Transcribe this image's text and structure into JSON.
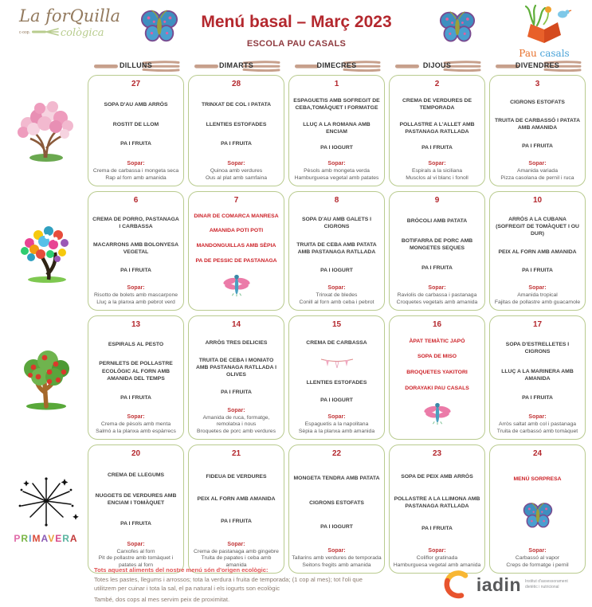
{
  "header": {
    "title": "Menú basal – Març 2023",
    "subtitle": "ESCOLA PAU CASALS",
    "brand_left": {
      "name": "La forQuilla",
      "eco": "cològica",
      "coop": "c-oop."
    },
    "brand_right": {
      "name_part1": "Pau ",
      "name_part2": "casals"
    }
  },
  "colors": {
    "accent_red": "#b4282e",
    "special_red": "#cc2127",
    "border_green": "#b9cb8f"
  },
  "days": [
    "DILLUNS",
    "DIMARTS",
    "DIMECRES",
    "DIJOUS",
    "DIVENDRES"
  ],
  "weeks": [
    {
      "side_image": "cherry-blossom-tree",
      "cells": [
        {
          "date": "27",
          "items": [
            "SOPA D'AU AMB ARRÒS",
            "ROSTIT DE LLOM",
            "PA I FRUITA"
          ],
          "sopar_label": "Sopar:",
          "sopar": [
            "Crema de carbassa i mongeta seca",
            "Rap al forn amb amanida"
          ]
        },
        {
          "date": "28",
          "items": [
            "TRINXAT DE COL I PATATA",
            "LLENTIES ESTOFADES",
            "PA I FRUITA"
          ],
          "sopar_label": "Sopar:",
          "sopar": [
            "Quinoa amb verdures",
            "Ous al plat amb samfaina"
          ]
        },
        {
          "date": "1",
          "items": [
            "ESPAGUETIS AMB SOFREGIT DE CEBA,TOMÀQUET I FORMATGE",
            "LLUÇ A LA ROMANA AMB ENCIAM",
            "PA I IOGURT"
          ],
          "sopar_label": "Sopar:",
          "sopar": [
            "Pèsols amb mongeta verda",
            "Hamburguesa vegetal amb patates"
          ]
        },
        {
          "date": "2",
          "items": [
            "CREMA DE VERDURES DE TEMPORADA",
            "POLLASTRE A L'ALLET AMB PASTANAGA RATLLADA",
            "PA I FRUITA"
          ],
          "sopar_label": "Sopar:",
          "sopar": [
            "Espirals a la siciliana",
            "Musclos al vi blanc i fonoll"
          ]
        },
        {
          "date": "3",
          "items": [
            "CIGRONS ESTOFATS",
            "TRUITA DE CARBASSÓ I PATATA AMB AMANIDA",
            "PA I FRUITA"
          ],
          "sopar_label": "Sopar:",
          "sopar": [
            "Amanida variada",
            "Pizza casolana de pernil i ruca"
          ]
        }
      ]
    },
    {
      "side_image": "flower-tree",
      "cells": [
        {
          "date": "6",
          "items": [
            "CREMA DE PORRO, PASTANAGA I CARBASSA",
            "MACARRONS AMB BOLONYESA VEGETAL",
            "PA I FRUITA"
          ],
          "sopar_label": "Sopar:",
          "sopar": [
            "Risotto de bolets amb mascarpone",
            "Lluç a la planxa amb pebrot verd"
          ]
        },
        {
          "date": "7",
          "highlight": true,
          "icon": "dragonfly",
          "items": [
            "DINAR DE COMARCA MANRESA",
            "AMANIDA POTI POTI",
            "MANDONGUILLAS AMB SÈPIA",
            "PA DE PESSIC DE PASTANAGA"
          ]
        },
        {
          "date": "8",
          "items": [
            "SOPA D'AU AMB GALETS I CIGRONS",
            "TRUITA DE CEBA AMB PATATA AMB PASTANAGA RATLLADA",
            "PA I IOGURT"
          ],
          "sopar_label": "Sopar:",
          "sopar": [
            "Trinxat de bledes",
            "Conill al forn amb ceba i pebrot"
          ]
        },
        {
          "date": "9",
          "items": [
            "BRÒCOLI AMB PATATA",
            "BOTIFARRA DE PORC AMB MONGETES SEQUES",
            "PA I FRUITA"
          ],
          "sopar_label": "Sopar:",
          "sopar": [
            "Raviolis de carbassa i pastanaga",
            "Croquetes vegetals amb amanida"
          ]
        },
        {
          "date": "10",
          "items": [
            "ARRÒS A LA CUBANA (SOFREGIT DE TOMÀQUET I OU DUR)",
            "PEIX AL FORN AMB AMANIDA",
            "PA I FRUITA"
          ],
          "sopar_label": "Sopar:",
          "sopar": [
            "Amanida tropical",
            "Fajitas de pollastre amb guacamole"
          ]
        }
      ]
    },
    {
      "side_image": "apple-tree",
      "cells": [
        {
          "date": "13",
          "items": [
            "ESPIRALS AL PESTO",
            "PERNILETS DE POLLASTRE ECOLÒGIC AL FORN AMB AMANIDA DEL TEMPS",
            "PA I FRUITA"
          ],
          "sopar_label": "Sopar:",
          "sopar": [
            "Crema de pèsols amb menta",
            "Salmó a la planxa amb espàrrecs"
          ]
        },
        {
          "date": "14",
          "items": [
            "ARRÒS TRES DELICIES",
            "TRUITA DE CEBA I MONIATO AMB PASTANAGA RATLLADA I OLIVES",
            "PA I FRUITA"
          ],
          "sopar_label": "Sopar:",
          "sopar": [
            "Amanida de ruca, formatge, remolatxa i nous",
            "Broquetes de porc amb verdures"
          ]
        },
        {
          "date": "15",
          "icon": "bunting",
          "items": [
            "CREMA DE CARBASSA",
            "LLENTIES ESTOFADES",
            "PA I IOGURT"
          ],
          "sopar_label": "Sopar:",
          "sopar": [
            "Espaguetis a la napolitana",
            "Sèpia a la planxa amb amanida"
          ]
        },
        {
          "date": "16",
          "highlight": true,
          "icon": "dragonfly",
          "items": [
            "ÀPAT TEMÀTIC JAPÓ",
            "SOPA DE MISO",
            "BROQUETES YAKITORI",
            "DORAYAKI PAU CASALS"
          ]
        },
        {
          "date": "17",
          "items": [
            "SOPA D'ESTRELLETES I CIGRONS",
            "LLUÇ A LA MARINERA AMB AMANIDA",
            "PA I FRUITA"
          ],
          "sopar_label": "Sopar:",
          "sopar": [
            "Arròs saltat amb col i pastanaga",
            "Truita de carbassó amb tomàquet"
          ]
        }
      ]
    },
    {
      "side_image": "fireworks-primavera",
      "side_word": "PRIMAVERA",
      "cells": [
        {
          "date": "20",
          "items": [
            "CREMA DE LLEGUMS",
            "NUGGETS DE VERDURES AMB ENCIAM I TOMÀQUET",
            "PA I FRUITA"
          ],
          "sopar_label": "Sopar:",
          "sopar": [
            "Carxofes al forn",
            "Pit de pollastre amb tomàquet i patates al forn"
          ]
        },
        {
          "date": "21",
          "items": [
            "FIDEUA DE VERDURES",
            "PEIX AL FORN AMB AMANIDA",
            "PA I FRUITA"
          ],
          "sopar_label": "Sopar:",
          "sopar": [
            "Crema de pastanaga amb gingebre",
            "Truita de papates i ceba amb amanida"
          ]
        },
        {
          "date": "22",
          "items": [
            "MONGETA TENDRA AMB PATATA",
            "CIGRONS ESTOFATS",
            "PA I IOGURT"
          ],
          "sopar_label": "Sopar:",
          "sopar": [
            "Tallarins amb verdures de temporada",
            "Seitons fregits amb amanida"
          ]
        },
        {
          "date": "23",
          "items": [
            "SOPA DE PEIX AMB ARRÒS",
            "POLLASTRE A LA LLIMONA AMB PASTANAGA RATLLADA",
            "PA I FRUITA"
          ],
          "sopar_label": "Sopar:",
          "sopar": [
            "Coliflor gratinada",
            "Hamburguesa vegetal amb amanida"
          ]
        },
        {
          "date": "24",
          "highlight": true,
          "icon": "butterfly",
          "items": [
            "MENÚ SORPRESA"
          ],
          "sopar_label": "Sopar:",
          "sopar": [
            "Carbassó al vapor",
            "Creps de formatge i pernil"
          ]
        }
      ]
    }
  ],
  "footer": {
    "eco_title": "Tots aquest aliments del nostre menú són d'origen ecològic:",
    "eco_line1": "Totes les pastes, llegums i arrossos; tota la verdura i fruita de temporada; (1 cop al mes); tot l'oli que",
    "eco_line2": "utilitzem per cuinar i tota la sal, el pa natural i els iogurts son ecològic",
    "eco_line3": "També, dos cops al mes servim peix de proximitat.",
    "iadin": {
      "name": "iadin",
      "tagline": "Institut d'assessorament dietètic i nutricional"
    }
  }
}
